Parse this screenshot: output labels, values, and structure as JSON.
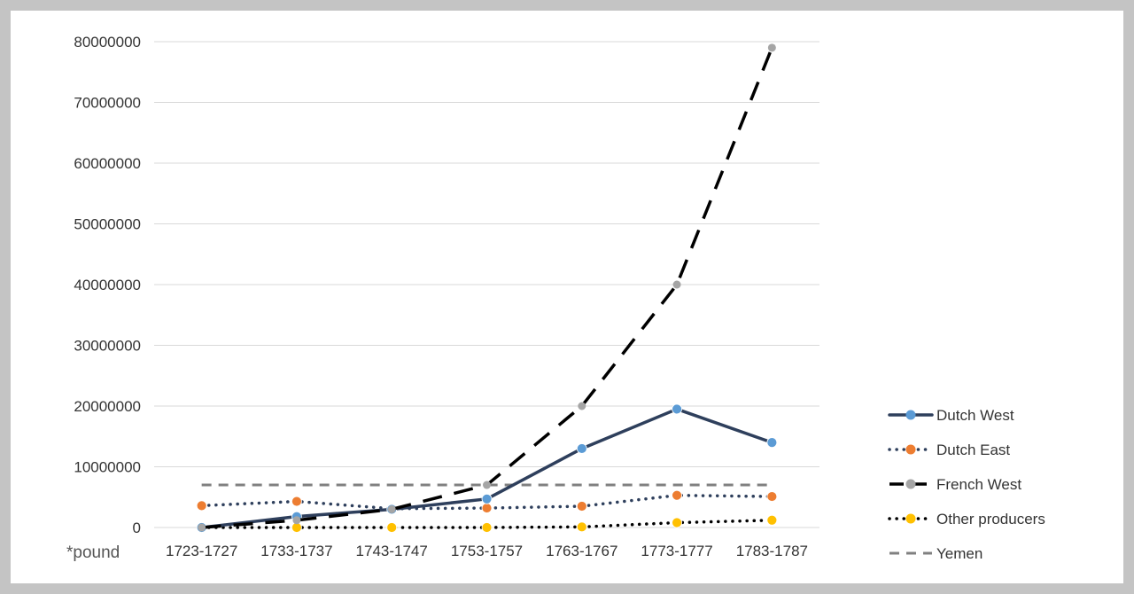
{
  "chart_data": {
    "type": "line",
    "categories": [
      "1723-1727",
      "1733-1737",
      "1743-1747",
      "1753-1757",
      "1763-1767",
      "1773-1777",
      "1783-1787"
    ],
    "ylim": [
      0,
      80000000
    ],
    "yticks": [
      0,
      10000000,
      20000000,
      30000000,
      40000000,
      50000000,
      60000000,
      70000000,
      80000000
    ],
    "ytick_labels": [
      "0",
      "10000000",
      "20000000",
      "30000000",
      "40000000",
      "50000000",
      "60000000",
      "70000000",
      "80000000"
    ],
    "unit_label": "*pound",
    "grid": true,
    "legend_position": "right",
    "series": [
      {
        "name": "Dutch West",
        "values": [
          0,
          1800000,
          3000000,
          4700000,
          13000000,
          19500000,
          14000000
        ],
        "color": "#2e3f5c",
        "marker_color": "#5b9bd5",
        "style": "solid"
      },
      {
        "name": "Dutch East",
        "values": [
          3600000,
          4300000,
          3100000,
          3200000,
          3500000,
          5300000,
          5100000
        ],
        "color": "#2e3f5c",
        "marker_color": "#ed7d31",
        "style": "dotted"
      },
      {
        "name": "French West",
        "values": [
          0,
          1200000,
          3000000,
          7000000,
          20000000,
          40000000,
          79000000
        ],
        "color": "#000000",
        "marker_color": "#a5a5a5",
        "style": "dashed"
      },
      {
        "name": "Other producers",
        "values": [
          0,
          0,
          0,
          0,
          100000,
          800000,
          1200000
        ],
        "color": "#000000",
        "marker_color": "#ffc000",
        "style": "dotted"
      },
      {
        "name": "Yemen",
        "values": [
          7000000,
          7000000,
          7000000,
          7000000,
          7000000,
          7000000,
          7000000
        ],
        "color": "#808080",
        "marker_color": null,
        "style": "dashed"
      }
    ]
  }
}
